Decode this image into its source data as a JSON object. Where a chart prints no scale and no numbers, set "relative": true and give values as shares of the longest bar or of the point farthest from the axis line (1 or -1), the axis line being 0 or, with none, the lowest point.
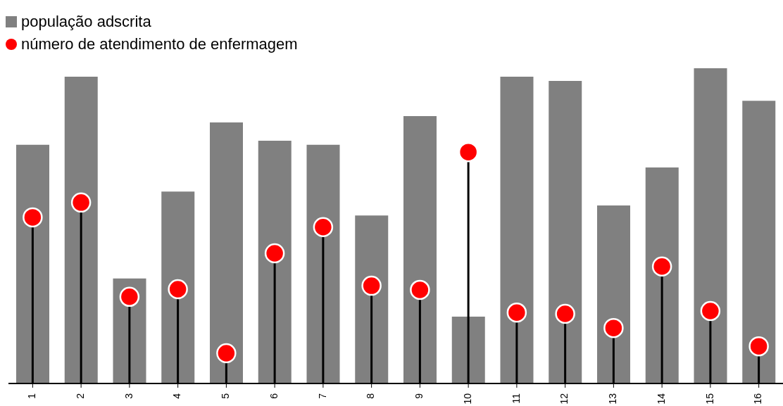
{
  "chart_data": {
    "type": "bar",
    "relative": true,
    "legend": "top left",
    "categories": [
      "1",
      "2",
      "3",
      "4",
      "5",
      "6",
      "7",
      "8",
      "9",
      "10",
      "11",
      "12",
      "13",
      "14",
      "15",
      "16"
    ],
    "series": [
      {
        "name": "população adscrita",
        "color": "#808080",
        "values": [
          0.757,
          0.973,
          0.333,
          0.609,
          0.828,
          0.77,
          0.757,
          0.533,
          0.848,
          0.212,
          0.973,
          0.96,
          0.565,
          0.685,
          1,
          0.897
        ]
      },
      {
        "name": "número de atendimento de enfermagem",
        "type": "lollipop",
        "color": "#ff0000",
        "values": [
          0.527,
          0.574,
          0.275,
          0.299,
          0.096,
          0.413,
          0.496,
          0.31,
          0.297,
          0.734,
          0.225,
          0.221,
          0.176,
          0.371,
          0.23,
          0.118
        ]
      }
    ]
  }
}
